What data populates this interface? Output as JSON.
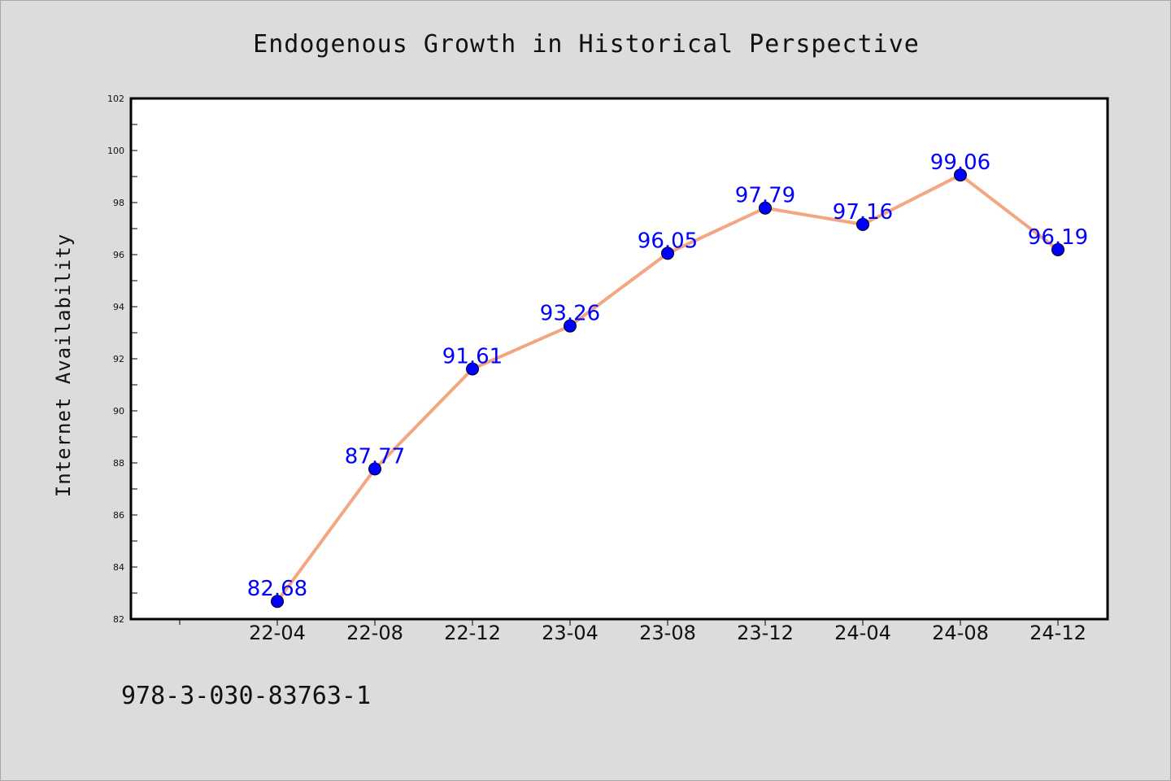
{
  "colors": {
    "background": "#dcdcdc",
    "plot_background": "#ffffff",
    "line": "#f4a582",
    "marker": "#0000ff",
    "data_label": "#0000ff",
    "axis": "#000000"
  },
  "footer": {
    "isbn": "978-3-030-83763-1"
  },
  "chart_data": {
    "type": "line",
    "title": "Endogenous Growth in Historical Perspective",
    "xlabel": "",
    "ylabel": "Internet Availability",
    "categories": [
      "22-04",
      "22-08",
      "22-12",
      "23-04",
      "23-08",
      "23-12",
      "24-04",
      "24-08",
      "24-12"
    ],
    "series": [
      {
        "values": [
          82.68,
          87.77,
          91.61,
          93.26,
          96.05,
          97.79,
          97.16,
          99.06,
          96.19
        ]
      }
    ],
    "data_labels": [
      "82.68",
      "87.77",
      "91.61",
      "93.26",
      "96.05",
      "97.79",
      "97.16",
      "99.06",
      "96.19"
    ],
    "ylim": [
      82,
      102
    ],
    "yticks": [
      "82",
      "84",
      "86",
      "88",
      "90",
      "92",
      "94",
      "96",
      "98",
      "100",
      "102"
    ],
    "grid": false,
    "legend": "none"
  }
}
